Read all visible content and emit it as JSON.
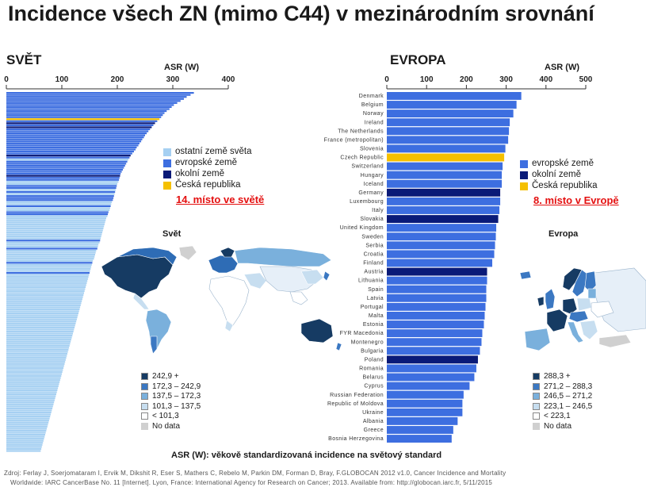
{
  "title": "Incidence všech ZN (mimo C44) v mezinárodním srovnání",
  "world": {
    "heading": "SVĚT",
    "map_title": "Svět",
    "rank_text": "14. místo ve světě",
    "legend": [
      {
        "label": "ostatní země světa",
        "color": "#a6d0f2"
      },
      {
        "label": "evropské země",
        "color": "#3d6ee0"
      },
      {
        "label": "okolní země",
        "color": "#0a1a78"
      },
      {
        "label": "Česká republika",
        "color": "#f5c000"
      }
    ],
    "map_legend": [
      {
        "label": "242,9 +",
        "color": "#163b63"
      },
      {
        "label": "172,3 – 242,9",
        "color": "#3b78c2"
      },
      {
        "label": "137,5 – 172,3",
        "color": "#7ab0dc"
      },
      {
        "label": "101,3 – 137,5",
        "color": "#c7def0"
      },
      {
        "label": "< 101,3",
        "color": "#ffffff"
      },
      {
        "label": "No data",
        "color": "#d0d0d0"
      }
    ]
  },
  "europe": {
    "heading": "EVROPA",
    "map_title": "Evropa",
    "rank_text": "8. místo v Evropě",
    "legend": [
      {
        "label": "evropské země",
        "color": "#3d6ee0"
      },
      {
        "label": "okolní země",
        "color": "#0a1a78"
      },
      {
        "label": "Česká republika",
        "color": "#f5c000"
      }
    ],
    "map_legend": [
      {
        "label": "288,3 +",
        "color": "#163b63"
      },
      {
        "label": "271,2 – 288,3",
        "color": "#3b78c2"
      },
      {
        "label": "246,5 – 271,2",
        "color": "#7ab0dc"
      },
      {
        "label": "223,1 – 246,5",
        "color": "#c7def0"
      },
      {
        "label": "< 223,1",
        "color": "#ffffff"
      },
      {
        "label": "No data",
        "color": "#d0d0d0"
      }
    ]
  },
  "caption": "ASR (W): věkově standardizovaná incidence na světový standard",
  "source_line1": "Zdroj: Ferlay J, Soerjomataram I, Ervik M, Dikshit R, Eser S, Mathers C, Rebelo M, Parkin DM, Forman D, Bray, F.GLOBOCAN 2012 v1.0, Cancer Incidence and Mortality",
  "source_line2": "Worldwide: IARC CancerBase No. 11 [Internet]. Lyon, France: International Agency for Research on Cancer; 2013. Available from: http://globocan.iarc.fr, 5/11/2015",
  "colors": {
    "other": "#a6d0f2",
    "europe": "#3d6ee0",
    "neighbour": "#0a1a78",
    "czech": "#f5c000"
  },
  "chart_data": [
    {
      "type": "bar",
      "orientation": "horizontal",
      "xlabel": "ASR (W)",
      "xlim": [
        0,
        400
      ],
      "ticks": [
        0,
        100,
        200,
        300,
        400
      ],
      "grid": false,
      "legend_placement": "right",
      "values": [
        338,
        332,
        325,
        320,
        314,
        308,
        302,
        298,
        294,
        289,
        285,
        282,
        279,
        276,
        272,
        268,
        265,
        262,
        259,
        256,
        253,
        250,
        248,
        245,
        243,
        240,
        238,
        235,
        233,
        230,
        227,
        224,
        222,
        220,
        218,
        216,
        214,
        212,
        210,
        208,
        206,
        205,
        204,
        203,
        202,
        200,
        199,
        198,
        197,
        196,
        195,
        194,
        193,
        192,
        190,
        189,
        188,
        187,
        186,
        184,
        183,
        182,
        180,
        179,
        178,
        177,
        176,
        175,
        174,
        173,
        172,
        171,
        170,
        169,
        168,
        166,
        165,
        164,
        162,
        161,
        160,
        159,
        158,
        156,
        155,
        154,
        153,
        152,
        151,
        150,
        149,
        148,
        147,
        146,
        145,
        144,
        143,
        142,
        141,
        140,
        139,
        138,
        137,
        136,
        135,
        134,
        133,
        132,
        131,
        130,
        129,
        128,
        127,
        126,
        125,
        124,
        123,
        122,
        121,
        120,
        119,
        118,
        117,
        116,
        115,
        114,
        113,
        112,
        111,
        110,
        109,
        108,
        107,
        106,
        105,
        104,
        103,
        102,
        101,
        100,
        99,
        98,
        97,
        96,
        95,
        94,
        93,
        92,
        91,
        90,
        89,
        88,
        87,
        86,
        85,
        84,
        83,
        82,
        81,
        80,
        79,
        78,
        77,
        76,
        75,
        74,
        73,
        72,
        71,
        70,
        69,
        68,
        67,
        66,
        65,
        64,
        63,
        62,
        61,
        60,
        59,
        58,
        57,
        56,
        55,
        54
      ],
      "groups": [
        "europe",
        "europe",
        "europe",
        "europe",
        "europe",
        "europe",
        "europe",
        "europe",
        "europe",
        "europe",
        "europe",
        "europe",
        "europe",
        "czech",
        "europe",
        "neighbour",
        "europe",
        "neighbour",
        "europe",
        "europe",
        "europe",
        "europe",
        "europe",
        "europe",
        "europe",
        "europe",
        "europe",
        "europe",
        "europe",
        "europe",
        "europe",
        "neighbour",
        "europe",
        "other",
        "europe",
        "europe",
        "europe",
        "europe",
        "europe",
        "europe",
        "europe",
        "neighbour",
        "europe",
        "europe",
        "other",
        "other",
        "europe",
        "europe",
        "other",
        "europe",
        "other",
        "europe",
        "europe",
        "europe",
        "other",
        "other",
        "europe",
        "other",
        "other",
        "europe",
        "europe",
        "other",
        "other",
        "other",
        "other",
        "other",
        "other",
        "other",
        "other",
        "other",
        "other",
        "other",
        "other",
        "europe",
        "other",
        "other",
        "other",
        "europe",
        "other",
        "other",
        "other",
        "other",
        "other",
        "other",
        "europe",
        "other",
        "other",
        "other",
        "other",
        "europe",
        "other",
        "other",
        "other",
        "other",
        "other",
        "other",
        "other",
        "other",
        "other",
        "other",
        "other",
        "other",
        "other",
        "other",
        "other",
        "other",
        "other",
        "other",
        "other",
        "other",
        "other",
        "other",
        "other",
        "other",
        "other",
        "other",
        "other",
        "other",
        "other",
        "other",
        "other",
        "other",
        "other",
        "other",
        "other",
        "other",
        "other",
        "other",
        "other",
        "other",
        "other",
        "other",
        "other",
        "other",
        "other",
        "other",
        "other",
        "other",
        "other",
        "other",
        "other",
        "other",
        "other",
        "other",
        "other",
        "other",
        "other",
        "other",
        "other",
        "other",
        "other",
        "other",
        "other",
        "other",
        "other",
        "other",
        "other",
        "other",
        "other",
        "other",
        "other",
        "other",
        "other",
        "other",
        "other",
        "other",
        "other",
        "other",
        "other",
        "other",
        "other",
        "other",
        "other",
        "other",
        "other",
        "other",
        "other",
        "other",
        "other",
        "other",
        "other",
        "other",
        "other",
        "other",
        "other"
      ]
    },
    {
      "type": "bar",
      "orientation": "horizontal",
      "xlabel": "ASR (W)",
      "xlim": [
        0,
        500
      ],
      "ticks": [
        0,
        100,
        200,
        300,
        400,
        500
      ],
      "grid": false,
      "legend_placement": "right",
      "categories": [
        "Denmark",
        "Belgium",
        "Norway",
        "Ireland",
        "The Netherlands",
        "France (metropolitan)",
        "Slovenia",
        "Czech Republic",
        "Switzerland",
        "Hungary",
        "Iceland",
        "Germany",
        "Luxembourg",
        "Italy",
        "Slovakia",
        "United Kingdom",
        "Sweden",
        "Serbia",
        "Croatia",
        "Finland",
        "Austria",
        "Lithuania",
        "Spain",
        "Latvia",
        "Portugal",
        "Malta",
        "Estonia",
        "FYR Macedonia",
        "Montenegro",
        "Bulgaria",
        "Poland",
        "Romania",
        "Belarus",
        "Cyprus",
        "Russian Federation",
        "Republic of Moldova",
        "Ukraine",
        "Albania",
        "Greece",
        "Bosnia Herzegovina"
      ],
      "values": [
        338,
        326,
        318,
        309,
        307,
        305,
        298,
        295,
        291,
        289,
        289,
        285,
        285,
        283,
        280,
        275,
        274,
        272,
        270,
        265,
        252,
        252,
        250,
        250,
        248,
        246,
        244,
        240,
        238,
        234,
        229,
        225,
        220,
        208,
        193,
        190,
        190,
        178,
        167,
        163
      ],
      "groups": [
        "europe",
        "europe",
        "europe",
        "europe",
        "europe",
        "europe",
        "europe",
        "czech",
        "europe",
        "europe",
        "europe",
        "neighbour",
        "europe",
        "europe",
        "neighbour",
        "europe",
        "europe",
        "europe",
        "europe",
        "europe",
        "neighbour",
        "europe",
        "europe",
        "europe",
        "europe",
        "europe",
        "europe",
        "europe",
        "europe",
        "europe",
        "neighbour",
        "europe",
        "europe",
        "europe",
        "europe",
        "europe",
        "europe",
        "europe",
        "europe",
        "europe"
      ]
    }
  ]
}
